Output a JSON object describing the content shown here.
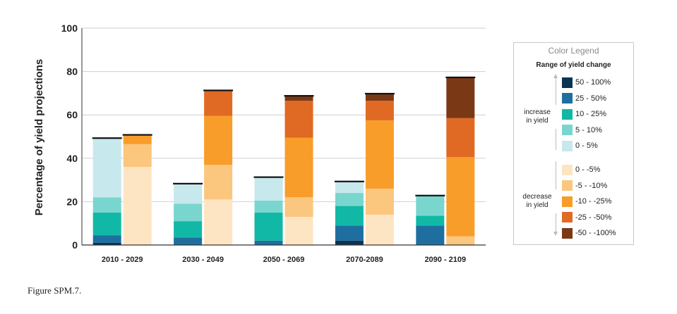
{
  "chart_data": {
    "type": "bar",
    "stacked": true,
    "ylabel": "Percentage of yield projections",
    "ylim": [
      0,
      100
    ],
    "yticks": [
      0,
      20,
      40,
      60,
      80,
      100
    ],
    "grid": true,
    "legend_position": "right",
    "categories": [
      "2010 - 2029",
      "2030 - 2049",
      "2050 - 2069",
      "2070-2089",
      "2090 - 2109"
    ],
    "series": [
      {
        "name": "50 - 100%",
        "color": "#0b3352",
        "values": [
          1,
          0,
          0,
          2,
          0
        ]
      },
      {
        "name": "25 - 50%",
        "color": "#1e6fa0",
        "values": [
          3.5,
          3.5,
          2,
          7,
          9
        ]
      },
      {
        "name": "10 - 25%",
        "color": "#12b8a6",
        "values": [
          10.5,
          7.5,
          13,
          9,
          4.5
        ]
      },
      {
        "name": "5 - 10%",
        "color": "#79d6ce",
        "values": [
          7,
          8,
          5.5,
          6,
          9
        ]
      },
      {
        "name": "0 - 5%",
        "color": "#c7e8ec",
        "values": [
          27,
          9,
          10.5,
          5,
          0
        ]
      },
      {
        "name": "0 - -5%",
        "color": "#fde5c4",
        "values": [
          36,
          21,
          13,
          14,
          0
        ]
      },
      {
        "name": "-5 - -10%",
        "color": "#fbc67e",
        "values": [
          10.5,
          16,
          9,
          12,
          4
        ]
      },
      {
        "name": "-10 - -25%",
        "color": "#f89d2a",
        "values": [
          4,
          22.5,
          27.5,
          31.5,
          36.5
        ]
      },
      {
        "name": "-25 - -50%",
        "color": "#e06a24",
        "values": [
          0,
          11.5,
          17,
          9,
          18
        ]
      },
      {
        "name": "-50 - -100%",
        "color": "#7a3814",
        "values": [
          0,
          0,
          2,
          3,
          18.5
        ]
      }
    ]
  },
  "legend": {
    "title": "Color Legend",
    "subtitle": "Range of yield change",
    "increase_label_1": "increase",
    "increase_label_2": "in yield",
    "decrease_label_1": "decrease",
    "decrease_label_2": "in yield",
    "increase_items": [
      {
        "label": "50 - 100%",
        "color": "#0b3352"
      },
      {
        "label": "25 - 50%",
        "color": "#1e6fa0"
      },
      {
        "label": "10 - 25%",
        "color": "#12b8a6"
      },
      {
        "label": "5 - 10%",
        "color": "#79d6ce"
      },
      {
        "label": "0 - 5%",
        "color": "#c7e8ec"
      }
    ],
    "decrease_items": [
      {
        "label": "0 - -5%",
        "color": "#fde5c4"
      },
      {
        "label": "-5 - -10%",
        "color": "#fbc67e"
      },
      {
        "label": "-10 - -25%",
        "color": "#f89d2a"
      },
      {
        "label": "-25 - -50%",
        "color": "#e06a24"
      },
      {
        "label": "-50 - -100%",
        "color": "#7a3814"
      }
    ]
  },
  "caption": "Figure SPM.7."
}
